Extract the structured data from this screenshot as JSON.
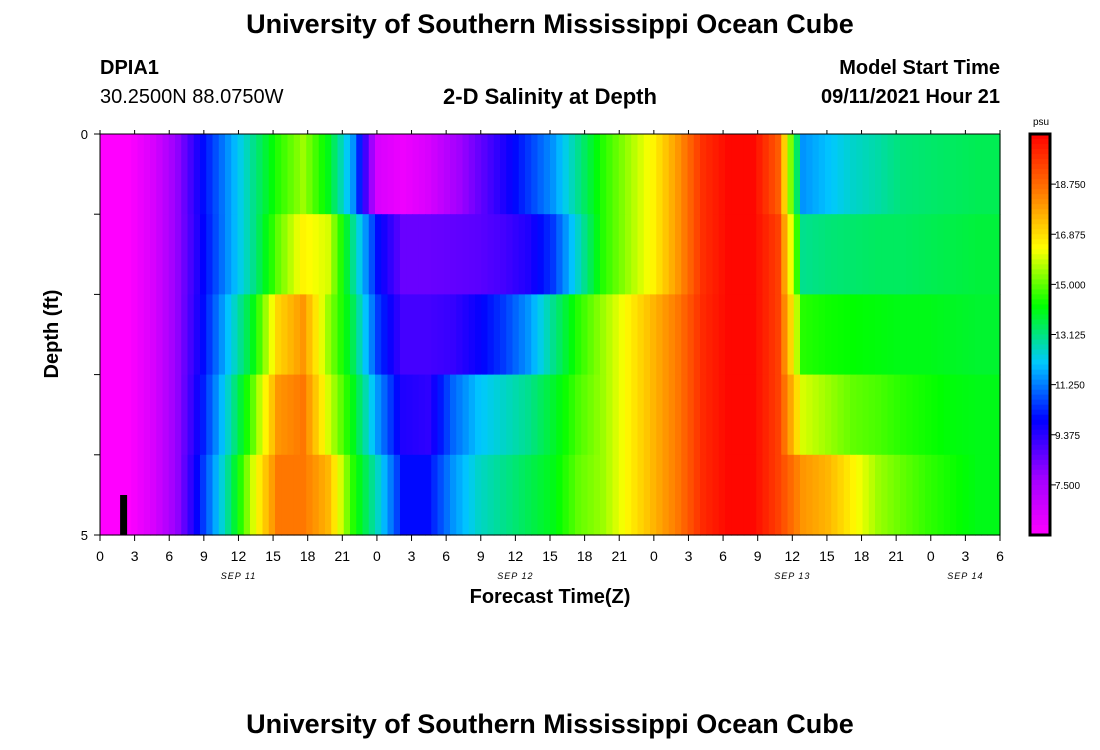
{
  "header": {
    "title": "University of Southern Mississippi Ocean Cube",
    "station_id": "DPIA1",
    "station_coords": "30.2500N  88.0750W",
    "plot_title": "2-D Salinity at Depth",
    "model_start_label": "Model Start Time",
    "model_start_value": "09/11/2021 Hour 21"
  },
  "footer": {
    "title": "University of Southern Mississippi Ocean Cube"
  },
  "chart_data": {
    "type": "heatmap",
    "title": "2-D Salinity at Depth",
    "xlabel": "Forecast Time(Z)",
    "ylabel": "Depth (ft)",
    "x_tick_labels": [
      "0",
      "3",
      "6",
      "9",
      "12",
      "15",
      "18",
      "21",
      "0",
      "3",
      "6",
      "9",
      "12",
      "15",
      "18",
      "21",
      "0",
      "3",
      "6",
      "9",
      "12",
      "15",
      "18",
      "21",
      "0",
      "3",
      "6"
    ],
    "date_labels": [
      "SEP 11",
      "SEP 12",
      "SEP 13",
      "SEP 14"
    ],
    "y_tick_labels": [
      "0",
      "5"
    ],
    "ylim": [
      0,
      5
    ],
    "colorbar": {
      "unit": "psu",
      "tick_labels": [
        "18.750",
        "16.875",
        "15.000",
        "13.125",
        "11.250",
        "9.375",
        "7.500"
      ],
      "tick_values": [
        18.75,
        16.875,
        15.0,
        13.125,
        11.25,
        9.375,
        7.5
      ],
      "range": [
        5.625,
        20.625
      ]
    },
    "depth_rows": 5,
    "segment_hours": 3,
    "time_start_hour": 0,
    "time_end_hour": 78,
    "marker_hour": 2,
    "colormap": [
      "#ff00ff",
      "#a000ff",
      "#0000ff",
      "#00c8ff",
      "#00ff00",
      "#ffff00",
      "#ff7800",
      "#ff0000"
    ],
    "rows": [
      [
        5.6,
        5.6,
        6.5,
        8.0,
        10.0,
        11.5,
        13.0,
        14.5,
        15.5,
        14.0,
        11.5,
        6.5,
        6.0,
        6.5,
        7.5,
        8.5,
        9.5,
        10.5,
        11.5,
        13.0,
        14.5,
        15.5,
        16.5,
        18.0,
        19.8,
        20.5,
        20.5,
        19.0,
        11.5,
        12.0,
        12.5,
        12.8,
        13.2,
        13.3,
        13.4,
        13.5
      ],
      [
        5.6,
        5.6,
        6.5,
        8.0,
        9.9,
        11.5,
        13.0,
        15.0,
        16.5,
        16.0,
        13.0,
        10.0,
        8.5,
        8.5,
        8.6,
        8.7,
        9.0,
        9.5,
        10.5,
        12.5,
        14.5,
        15.5,
        16.5,
        18.0,
        19.8,
        20.5,
        20.5,
        19.5,
        13.0,
        13.2,
        13.3,
        13.4,
        13.4,
        13.5,
        13.6,
        13.7
      ],
      [
        5.6,
        5.6,
        6.5,
        8.0,
        10.0,
        12.0,
        14.0,
        17.0,
        18.0,
        15.5,
        13.5,
        10.5,
        9.0,
        9.0,
        9.2,
        9.8,
        10.5,
        11.5,
        13.0,
        14.5,
        15.5,
        16.5,
        17.5,
        18.5,
        19.9,
        20.5,
        20.5,
        19.5,
        14.5,
        14.3,
        14.2,
        14.1,
        14.0,
        14.0,
        13.9,
        13.8
      ],
      [
        5.6,
        5.6,
        6.5,
        8.0,
        10.2,
        12.5,
        15.0,
        18.0,
        18.5,
        16.0,
        14.0,
        11.5,
        9.5,
        9.3,
        11.0,
        12.0,
        12.5,
        13.0,
        13.8,
        14.8,
        15.5,
        16.5,
        17.5,
        18.5,
        19.9,
        20.5,
        20.5,
        19.5,
        16.0,
        15.5,
        15.0,
        14.8,
        14.5,
        14.3,
        14.1,
        14.0
      ],
      [
        5.6,
        5.6,
        6.5,
        8.0,
        10.5,
        13.0,
        16.0,
        18.5,
        18.5,
        17.5,
        14.5,
        12.5,
        10.0,
        10.0,
        11.5,
        12.5,
        13.0,
        13.5,
        14.0,
        15.0,
        15.5,
        16.5,
        17.5,
        18.5,
        19.9,
        20.5,
        20.5,
        19.5,
        18.0,
        17.5,
        16.5,
        15.5,
        15.0,
        14.6,
        14.3,
        14.0
      ]
    ]
  }
}
